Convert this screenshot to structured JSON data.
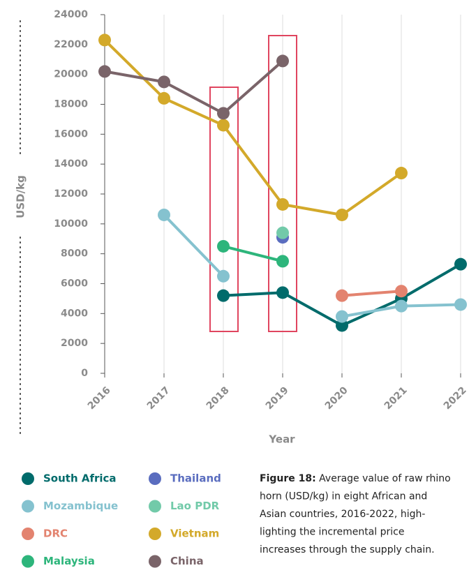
{
  "chart_data": {
    "type": "line",
    "ylabel": "USD/kg",
    "xlabel": "Year",
    "categories": [
      "2016",
      "2017",
      "2018",
      "2019",
      "2020",
      "2021",
      "2022"
    ],
    "ylim": [
      0,
      24000
    ],
    "yticks": [
      0,
      2000,
      4000,
      6000,
      8000,
      10000,
      12000,
      14000,
      16000,
      18000,
      20000,
      22000,
      24000
    ],
    "grid": true,
    "series": [
      {
        "name": "South Africa",
        "color": "#006b6b",
        "values": [
          null,
          null,
          5200,
          5400,
          3200,
          5000,
          7300
        ]
      },
      {
        "name": "Mozambique",
        "color": "#85c2cf",
        "values": [
          null,
          10600,
          6500,
          null,
          3800,
          4500,
          4600
        ]
      },
      {
        "name": "DRC",
        "color": "#e3836f",
        "values": [
          null,
          null,
          null,
          null,
          5200,
          5500,
          null
        ]
      },
      {
        "name": "Malaysia",
        "color": "#2db57b",
        "values": [
          null,
          null,
          8500,
          7500,
          null,
          null,
          null
        ]
      },
      {
        "name": "Thailand",
        "color": "#5a6dbf",
        "values": [
          null,
          null,
          null,
          9100,
          null,
          null,
          null
        ]
      },
      {
        "name": "Lao PDR",
        "color": "#72caa9",
        "values": [
          null,
          null,
          null,
          9400,
          null,
          null,
          null
        ]
      },
      {
        "name": "Vietnam",
        "color": "#d3a92a",
        "values": [
          22300,
          18400,
          16600,
          11300,
          10600,
          13400,
          null
        ]
      },
      {
        "name": "China",
        "color": "#7a6469",
        "values": [
          20200,
          19500,
          17400,
          20900,
          null,
          null,
          null
        ]
      }
    ],
    "caption_label": "Figure 18:",
    "caption_lines": [
      " Average value of raw rhino",
      "horn (USD/kg) in eight African and",
      "Asian countries, 2016-2022, high-",
      "lighting the incremental price",
      "increases through the supply chain."
    ]
  }
}
